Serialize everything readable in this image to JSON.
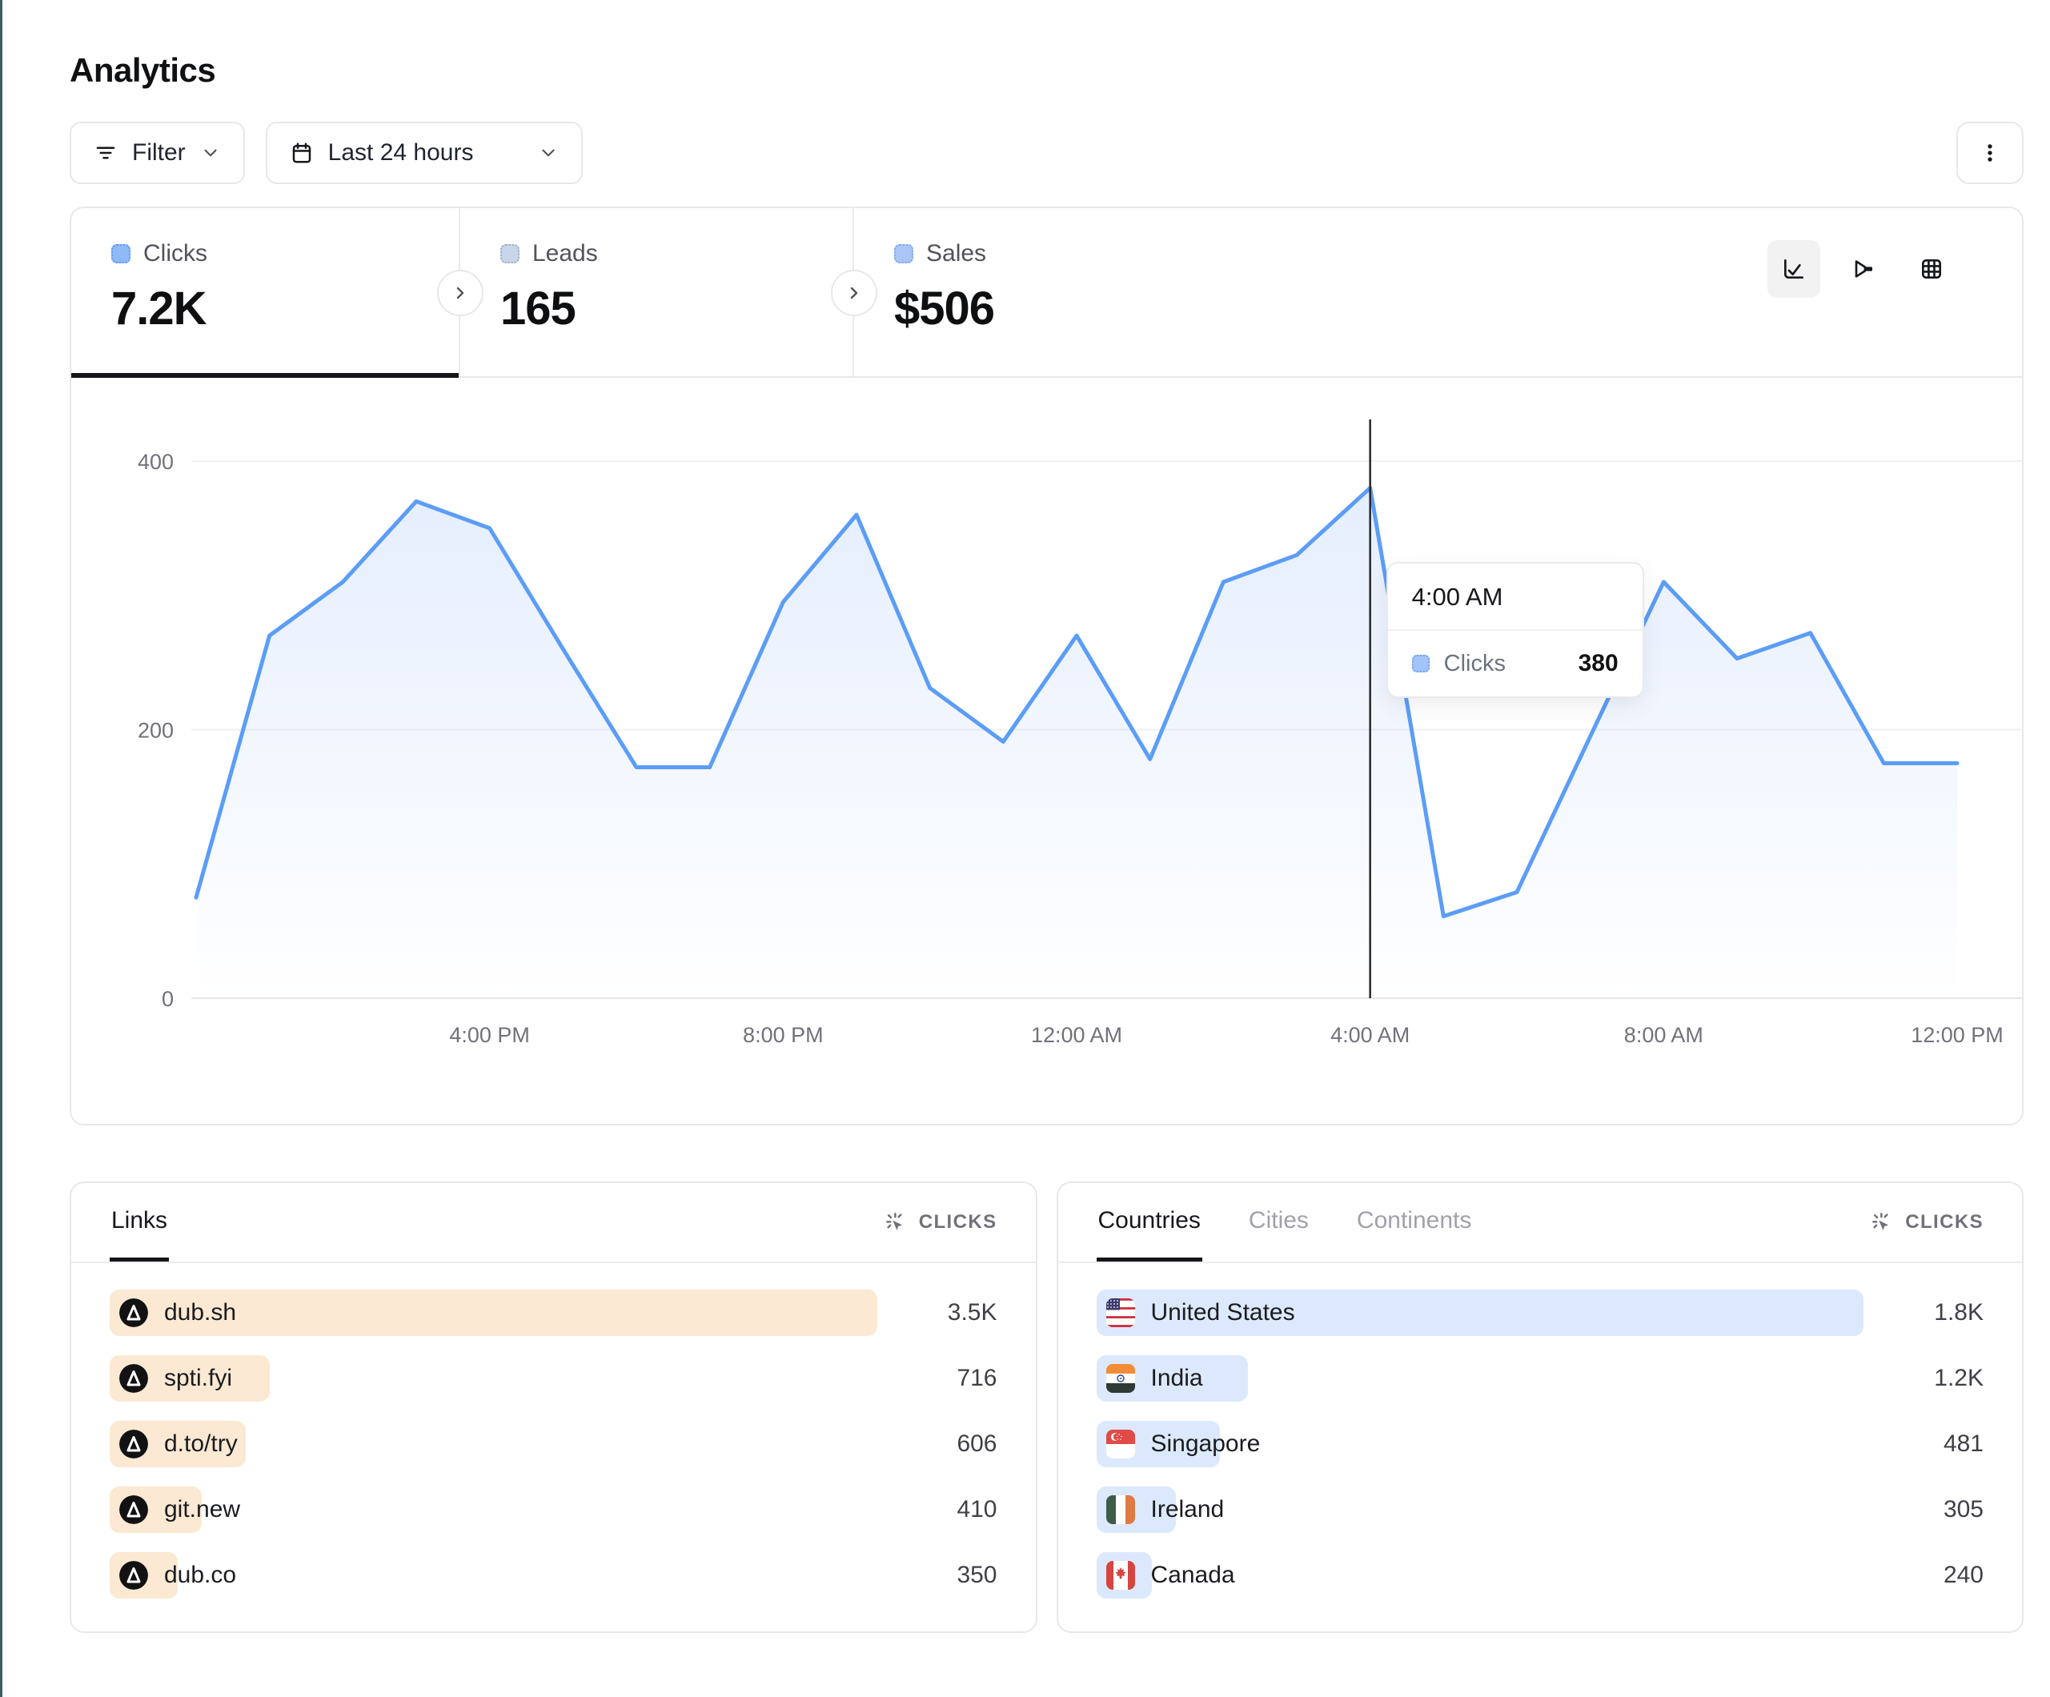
{
  "page": {
    "title": "Analytics"
  },
  "toolbar": {
    "filter": {
      "label": "Filter"
    },
    "date_range": {
      "label": "Last 24 hours"
    }
  },
  "stats": {
    "cards": [
      {
        "id": "clicks",
        "label": "Clicks",
        "value": "7.2K",
        "active": true,
        "swatch_fill": "#8FB9F7",
        "swatch_border": "#5F9BF3"
      },
      {
        "id": "leads",
        "label": "Leads",
        "value": "165",
        "active": false,
        "swatch_fill": "#C9D5E8",
        "swatch_border": "#9FB0C6"
      },
      {
        "id": "sales",
        "label": "Sales",
        "value": "$506",
        "active": false,
        "swatch_fill": "#A9C6F4",
        "swatch_border": "#7FABEF"
      }
    ],
    "active_view": "line-chart"
  },
  "chart_data": {
    "type": "area",
    "series_name": "Clicks",
    "x": [
      "12:00 PM",
      "1:00 PM",
      "2:00 PM",
      "3:00 PM",
      "4:00 PM",
      "5:00 PM",
      "6:00 PM",
      "7:00 PM",
      "8:00 PM",
      "9:00 PM",
      "10:00 PM",
      "11:00 PM",
      "12:00 AM",
      "1:00 AM",
      "2:00 AM",
      "3:00 AM",
      "4:00 AM",
      "5:00 AM",
      "6:00 AM",
      "7:00 AM",
      "8:00 AM",
      "9:00 AM",
      "10:00 AM",
      "11:00 AM",
      "12:00 PM"
    ],
    "values": [
      75,
      270,
      310,
      370,
      350,
      260,
      172,
      172,
      295,
      360,
      231,
      191,
      270,
      178,
      310,
      330,
      380,
      61,
      79,
      195,
      310,
      253,
      272,
      175,
      175
    ],
    "ylim": [
      0,
      400
    ],
    "yticks": [
      0,
      200,
      400
    ],
    "xticks": [
      "4:00 PM",
      "8:00 PM",
      "12:00 AM",
      "4:00 AM",
      "8:00 AM",
      "12:00 PM"
    ],
    "xtick_indices": [
      4,
      8,
      12,
      16,
      20,
      24
    ],
    "grid": "horizontal",
    "legend": "none",
    "line_color": "#5B9DF7",
    "area_fill_top": "rgba(95,150,246,0.16)",
    "area_fill_bottom": "rgba(95,150,246,0)",
    "crosshair_index": 16
  },
  "tooltip": {
    "title": "4:00 AM",
    "rows": [
      {
        "label": "Clicks",
        "value": "380"
      }
    ]
  },
  "links_panel": {
    "tabs": [
      {
        "label": "Links",
        "active": true
      }
    ],
    "metric_label": "CLICKS",
    "bar_color": "#FCE9D3",
    "rows": [
      {
        "label": "dub.sh",
        "value": "3.5K",
        "bar_pct": 96,
        "icon": "dub-logo"
      },
      {
        "label": "spti.fyi",
        "value": "716",
        "bar_pct": 20,
        "icon": "dub-logo"
      },
      {
        "label": "d.to/try",
        "value": "606",
        "bar_pct": 17,
        "icon": "dub-logo"
      },
      {
        "label": "git.new",
        "value": "410",
        "bar_pct": 11.5,
        "icon": "dub-logo"
      },
      {
        "label": "dub.co",
        "value": "350",
        "bar_pct": 8.5,
        "icon": "dub-logo"
      }
    ]
  },
  "geo_panel": {
    "tabs": [
      {
        "label": "Countries",
        "active": true
      },
      {
        "label": "Cities",
        "active": false
      },
      {
        "label": "Continents",
        "active": false
      }
    ],
    "metric_label": "CLICKS",
    "bar_color": "#DCE9FC",
    "rows": [
      {
        "label": "United States",
        "value": "1.8K",
        "bar_pct": 96,
        "flag": "us"
      },
      {
        "label": "India",
        "value": "1.2K",
        "bar_pct": 19,
        "flag": "in"
      },
      {
        "label": "Singapore",
        "value": "481",
        "bar_pct": 15.5,
        "flag": "sg"
      },
      {
        "label": "Ireland",
        "value": "305",
        "bar_pct": 10,
        "flag": "ie"
      },
      {
        "label": "Canada",
        "value": "240",
        "bar_pct": 7,
        "flag": "ca"
      }
    ]
  }
}
